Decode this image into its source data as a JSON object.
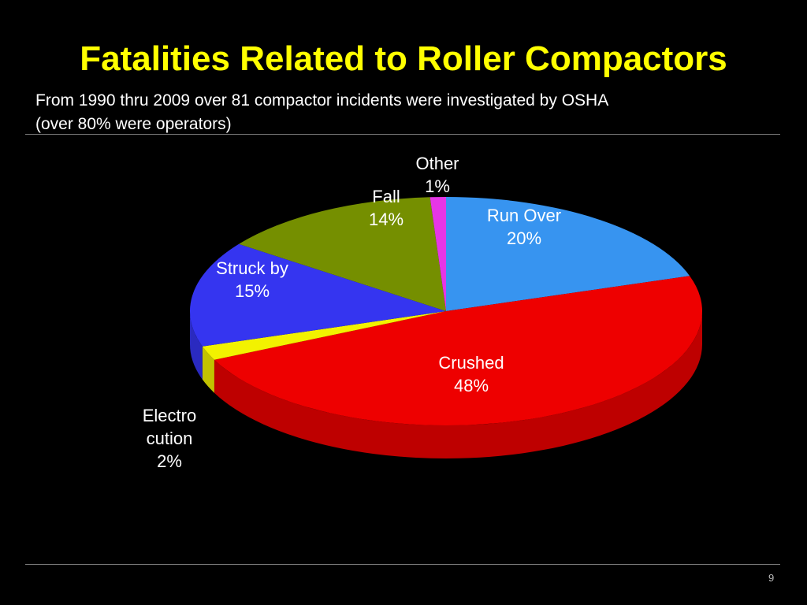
{
  "chart_data": {
    "type": "pie",
    "title": "Fatalities Related to Roller Compactors",
    "subtitle": [
      "From 1990 thru 2009 over 81 compactor incidents were investigated by OSHA",
      "(over 80% were operators)"
    ],
    "categories": [
      "Run Over",
      "Crushed",
      "Electro\ncution",
      "Struck by",
      "Fall",
      "Other"
    ],
    "values": [
      20,
      48,
      2,
      15,
      14,
      1
    ],
    "value_labels": [
      "20%",
      "48%",
      "2%",
      "15%",
      "14%",
      "1%"
    ],
    "colors": [
      "#3794f0",
      "#ee0000",
      "#f2f200",
      "#3535f0",
      "#758f00",
      "#e636e6"
    ]
  },
  "page_number": 9
}
